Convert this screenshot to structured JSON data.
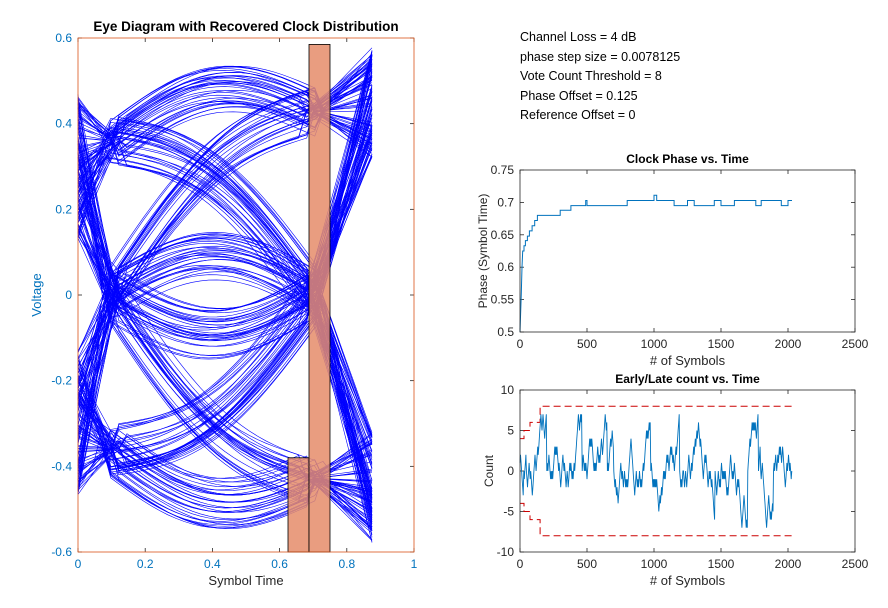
{
  "chart_data": [
    {
      "type": "eye-diagram",
      "title": "Eye Diagram with Recovered Clock Distribution",
      "xlabel": "Symbol Time",
      "ylabel": "Voltage",
      "xlim": [
        0,
        1
      ],
      "ylim": [
        -0.6,
        0.6
      ],
      "xticks": [
        "0",
        "0.2",
        "0.4",
        "0.6",
        "0.8",
        "1"
      ],
      "xtick_values": [
        0,
        0.2,
        0.4,
        0.6,
        0.8,
        1
      ],
      "yticks": [
        "-0.6",
        "-0.4",
        "-0.2",
        "0",
        "0.2",
        "0.4",
        "0.6"
      ],
      "ytick_values": [
        -0.6,
        -0.4,
        -0.2,
        0,
        0.2,
        0.4,
        0.6
      ],
      "trace_color": "#0000ff",
      "trace_x_range": [
        0,
        0.875
      ],
      "high_level": 0.45,
      "low_level": -0.45,
      "crossing_x": 0.1,
      "clock_histogram": {
        "color": "#e58c6a",
        "bars": [
          {
            "x0": 0.625,
            "x1": 0.6875,
            "height": 0.22
          },
          {
            "x0": 0.6875,
            "x1": 0.75,
            "height": 1.185
          }
        ]
      }
    },
    {
      "type": "line",
      "title": "Clock Phase vs. Time",
      "xlabel": "# of Symbols",
      "ylabel": "Phase (Symbol Time)",
      "xlim": [
        0,
        2500
      ],
      "ylim": [
        0.5,
        0.75
      ],
      "xticks": [
        "0",
        "500",
        "1000",
        "1500",
        "2000",
        "2500"
      ],
      "xtick_values": [
        0,
        500,
        1000,
        1500,
        2000,
        2500
      ],
      "yticks": [
        "0.5",
        "0.55",
        "0.6",
        "0.65",
        "0.7",
        "0.75"
      ],
      "ytick_values": [
        0.5,
        0.55,
        0.6,
        0.65,
        0.7,
        0.75
      ],
      "color": "#0072bd",
      "x": [
        0,
        10,
        15,
        20,
        30,
        40,
        55,
        70,
        90,
        110,
        130,
        160,
        200,
        250,
        300,
        380,
        430,
        490,
        500,
        720,
        800,
        980,
        1000,
        1020,
        1100,
        1150,
        1250,
        1300,
        1450,
        1500,
        1580,
        1600,
        1700,
        1760,
        1800,
        1850,
        1950,
        2000,
        2030
      ],
      "y": [
        0.5,
        0.56,
        0.6,
        0.625,
        0.633,
        0.641,
        0.648,
        0.656,
        0.664,
        0.672,
        0.68,
        0.68,
        0.68,
        0.68,
        0.688,
        0.695,
        0.695,
        0.703,
        0.695,
        0.695,
        0.703,
        0.703,
        0.711,
        0.703,
        0.703,
        0.695,
        0.703,
        0.695,
        0.703,
        0.695,
        0.695,
        0.703,
        0.703,
        0.695,
        0.703,
        0.703,
        0.695,
        0.703,
        0.703
      ]
    },
    {
      "type": "line",
      "title": "Early/Late count vs. Time",
      "xlabel": "# of Symbols",
      "ylabel": "Count",
      "xlim": [
        0,
        2500
      ],
      "ylim": [
        -10,
        10
      ],
      "xticks": [
        "0",
        "500",
        "1000",
        "1500",
        "2000",
        "2500"
      ],
      "xtick_values": [
        0,
        500,
        1000,
        1500,
        2000,
        2500
      ],
      "yticks": [
        "-10",
        "-5",
        "0",
        "5",
        "10"
      ],
      "ytick_values": [
        -10,
        -5,
        0,
        5,
        10
      ],
      "color": "#0072bd",
      "threshold_color": "#cc0000",
      "thresholds": {
        "x": [
          0,
          30,
          30,
          75,
          75,
          150,
          150,
          2030
        ],
        "upper": [
          4,
          4,
          5,
          5,
          6,
          6,
          8,
          8
        ],
        "lower": [
          -4,
          -4,
          -5,
          -5,
          -6,
          -6,
          -8,
          -8
        ]
      },
      "x_range": [
        0,
        2030
      ]
    }
  ],
  "annotations": [
    "Channel Loss = 4 dB",
    "phase step size = 0.0078125",
    "Vote Count Threshold = 8",
    "Phase Offset = 0.125",
    "Reference Offset = 0"
  ]
}
